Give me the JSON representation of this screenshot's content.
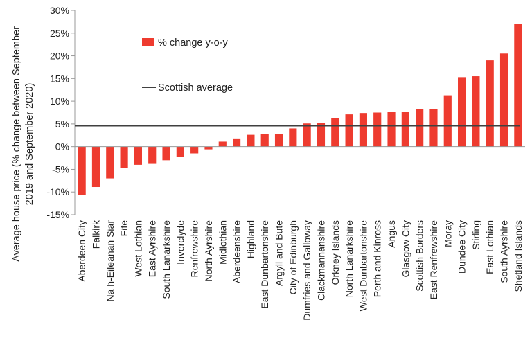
{
  "chart_data": {
    "type": "bar",
    "title": "",
    "xlabel": "",
    "ylabel_line1": "Average house price (% change between September",
    "ylabel_line2": "2019 and September 2020)",
    "ylim": [
      -15,
      30
    ],
    "yticks": [
      -15,
      -10,
      -5,
      0,
      5,
      10,
      15,
      20,
      25,
      30
    ],
    "ytick_format": "percent",
    "grid": false,
    "legend_position": "top-left",
    "categories": [
      "Aberdeen City",
      "Falkirk",
      "Na h-Eileanan Siar",
      "Fife",
      "West Lothian",
      "East Ayrshire",
      "South Lanarkshire",
      "Inverclyde",
      "Renfrewshire",
      "North Ayrshire",
      "Midlothian",
      "Aberdeenshire",
      "Highland",
      "East Dunbartonshire",
      "Argyll and Bute",
      "City of Edinburgh",
      "Dumfries and Galloway",
      "Clackmannanshire",
      "Orkney Islands",
      "North Lanarkshire",
      "West Dunbartonshire",
      "Perth and Kinross",
      "Angus",
      "Glasgow City",
      "Scottish Borders",
      "East Renfrewshire",
      "Moray",
      "Dundee City",
      "Stirling",
      "East Lothian",
      "South Ayrshire",
      "Shetland Islands"
    ],
    "series": [
      {
        "name": "% change y-o-y",
        "color": "#ee3b2f",
        "values": [
          -10.7,
          -8.9,
          -7.0,
          -4.7,
          -4.0,
          -3.8,
          -3.0,
          -2.3,
          -1.5,
          -0.6,
          1.1,
          1.8,
          2.6,
          2.7,
          2.8,
          4.0,
          5.1,
          5.2,
          6.3,
          7.1,
          7.4,
          7.5,
          7.6,
          7.6,
          8.2,
          8.3,
          11.3,
          15.3,
          15.5,
          19.0,
          20.5,
          27.1
        ]
      }
    ],
    "reference_line": {
      "name": "Scottish average",
      "value": 4.6,
      "color": "#404040"
    }
  }
}
